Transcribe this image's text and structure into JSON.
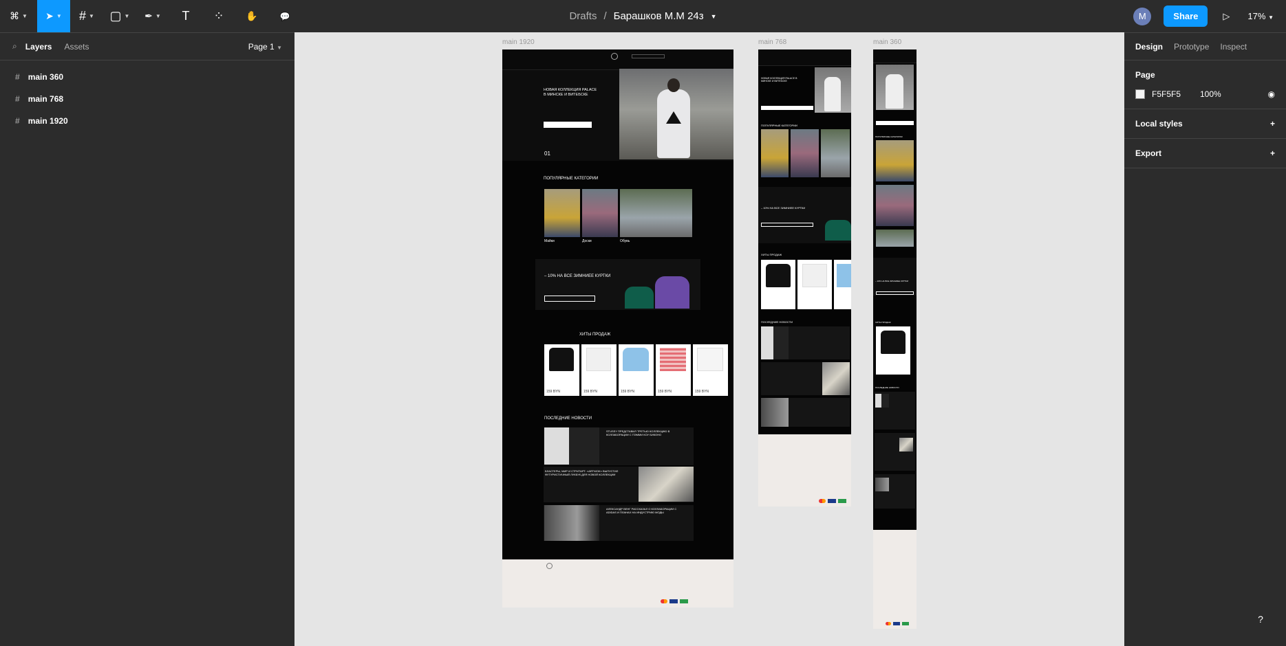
{
  "toolbar": {
    "tools": [
      {
        "name": "main-menu",
        "label": "⌘"
      },
      {
        "name": "move-tool",
        "label": "➤"
      },
      {
        "name": "frame-tool",
        "label": "#"
      },
      {
        "name": "shape-tool",
        "label": "▢"
      },
      {
        "name": "pen-tool",
        "label": "✒"
      },
      {
        "name": "text-tool",
        "label": "T"
      },
      {
        "name": "resources-tool",
        "label": "⁘"
      },
      {
        "name": "hand-tool",
        "label": "✋"
      },
      {
        "name": "comment-tool",
        "label": "💬"
      }
    ],
    "breadcrumb_drafts": "Drafts",
    "breadcrumb_sep": "/",
    "file_name": "Барашков М.М 24з",
    "avatar_letter": "M",
    "share_label": "Share",
    "play_icon": "▷",
    "zoom": "17%"
  },
  "left_panel": {
    "tab_layers": "Layers",
    "tab_assets": "Assets",
    "page_selector": "Page 1",
    "layers": [
      "main 360",
      "main 768",
      "main 1920"
    ]
  },
  "right_panel": {
    "tabs": [
      "Design",
      "Prototype",
      "Inspect"
    ],
    "page_section": "Page",
    "page_color": "F5F5F5",
    "page_opacity": "100%",
    "local_styles": "Local styles",
    "export": "Export"
  },
  "frames": {
    "f1920": {
      "label": "main 1920",
      "hero_title": "НОВАЯ КОЛЛЕКЦИЯ PALACE В МИНСКЕ И ВИТЕБСКЕ",
      "hero_btn": "ПЕРЕЙТИ В КАТАЛОГ",
      "hero_num": "01",
      "popular": "ПОПУЛЯРНЫЕ КАТЕГОРИИ",
      "cat1": "Майки",
      "cat2": "Доски",
      "cat3": "Обувь",
      "sale": "– 10% НА ВСЕ ЗИМНИЕЕ КУРТКИ",
      "sale_btn": "ПЕРЕЙТИ В КАТАЛОГ",
      "hits": "ХИТЫ ПРОДАЖ",
      "news": "ПОСЛЕДНИЕ НОВОСТИ",
      "news1": "STUSSY ПРЕДСТАВИЛ ТРЕТЬЮ КОЛЛЕКЦИЮ В КОЛЛАБОРАЦИИ С ПЭММИ КОУ БИКОНО",
      "news2": "БЛАСТЕРЫ, МИР И СТРИТАРТ: «ARTWOK» ВЫПУСТИЛ ФУТУРИСТИЧНЫЙ ЛУКБУК ДЛЯ НОВОЙ КОЛЛЕКЦИИ",
      "news3": "АЛЕКСАНДР ВЕНГ РАССКАЗАЛ О КОЛЛАБОРАЦИИ С ADIDAS И ПЛАНАХ НА ИНДУСТРИЮ МОДЫ"
    },
    "f768": {
      "label": "main 768",
      "hero_title": "НОВАЯ КОЛЛЕКЦИЯ PALACE В МИНСКЕ И ВИТЕБСКЕ",
      "popular": "ПОПУЛЯРНЫЕ КАТЕГОРИИ",
      "sale": "– 10% НА ВСЕ ЗИМНИЕЕ КУРТКИ",
      "hits": "ХИТЫ ПРОДАЖ",
      "news": "ПОСЛЕДНИЕ НОВОСТИ"
    },
    "f360": {
      "label": "main 360",
      "popular": "ПОПУЛЯРНЫЕ КАТЕГОРИИ",
      "sale": "– 10% НА ВСЕ ЗИМНИЕЕ КУРТКИ",
      "hits": "ХИТЫ ПРОДАЖ",
      "news": "ПОСЛЕДНИЕ НОВОСТИ"
    },
    "price": "159 BYN"
  },
  "help_icon": "?"
}
